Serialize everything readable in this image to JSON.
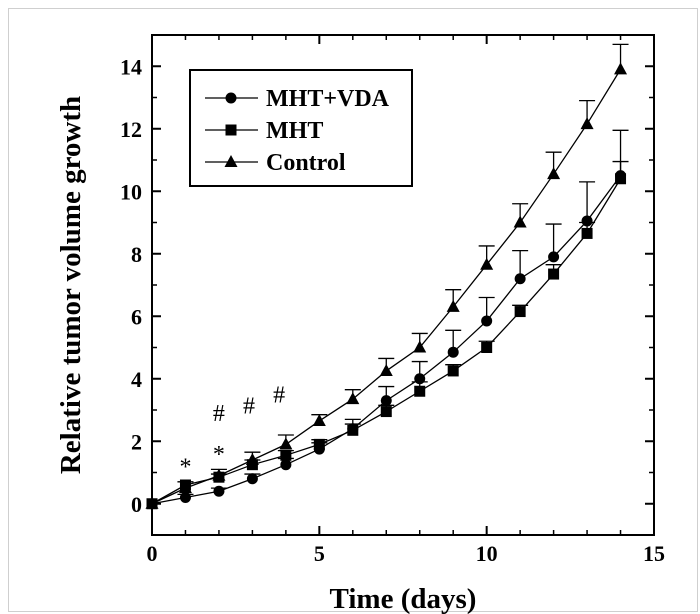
{
  "chart_data": {
    "type": "line",
    "title": "",
    "xlabel": "Time (days)",
    "ylabel": "Relative tumor volume growth",
    "xlim": [
      0,
      15
    ],
    "ylim": [
      -1,
      15
    ],
    "xticks": [
      "0",
      "5",
      "10",
      "15"
    ],
    "yticks": [
      "0",
      "2",
      "4",
      "6",
      "8",
      "10",
      "12",
      "14"
    ],
    "grid": false,
    "legend_position": "top-left",
    "x": [
      0,
      1,
      2,
      3,
      4,
      5,
      6,
      7,
      8,
      9,
      10,
      11,
      12,
      13,
      14
    ],
    "series": [
      {
        "name": "MHT+VDA",
        "marker": "circle",
        "values": [
          0,
          0.2,
          0.4,
          0.8,
          1.25,
          1.75,
          2.4,
          3.3,
          4.0,
          4.85,
          5.85,
          7.2,
          7.9,
          9.05,
          10.5
        ],
        "error": [
          0,
          0.1,
          0.1,
          0.15,
          0.2,
          0.2,
          0.3,
          0.45,
          0.55,
          0.7,
          0.75,
          0.9,
          1.05,
          1.25,
          1.45
        ]
      },
      {
        "name": "MHT",
        "marker": "square",
        "values": [
          0,
          0.6,
          0.85,
          1.25,
          1.55,
          1.9,
          2.35,
          2.95,
          3.6,
          4.25,
          5.0,
          6.15,
          7.35,
          8.65,
          10.4
        ],
        "error": [
          0,
          0.1,
          0.1,
          0.15,
          0.15,
          0.15,
          0.2,
          0.2,
          0.3,
          0.2,
          0.2,
          0.2,
          0.3,
          0.35,
          0.55
        ]
      },
      {
        "name": "Control",
        "marker": "triangle",
        "values": [
          0,
          0.5,
          0.9,
          1.4,
          1.9,
          2.65,
          3.35,
          4.25,
          5.0,
          6.3,
          7.65,
          9.0,
          10.55,
          12.15,
          13.9
        ],
        "error": [
          0,
          0.2,
          0.2,
          0.25,
          0.3,
          0.2,
          0.3,
          0.4,
          0.45,
          0.55,
          0.6,
          0.6,
          0.7,
          0.75,
          0.8
        ]
      }
    ],
    "annotations": [
      {
        "text": "*",
        "x": 1,
        "y": 1.2
      },
      {
        "text": "*",
        "x": 2,
        "y": 1.6
      },
      {
        "text": "#",
        "x": 2,
        "y": 2.9
      },
      {
        "text": "#",
        "x": 2.9,
        "y": 3.15
      },
      {
        "text": "#",
        "x": 3.8,
        "y": 3.5
      }
    ]
  }
}
